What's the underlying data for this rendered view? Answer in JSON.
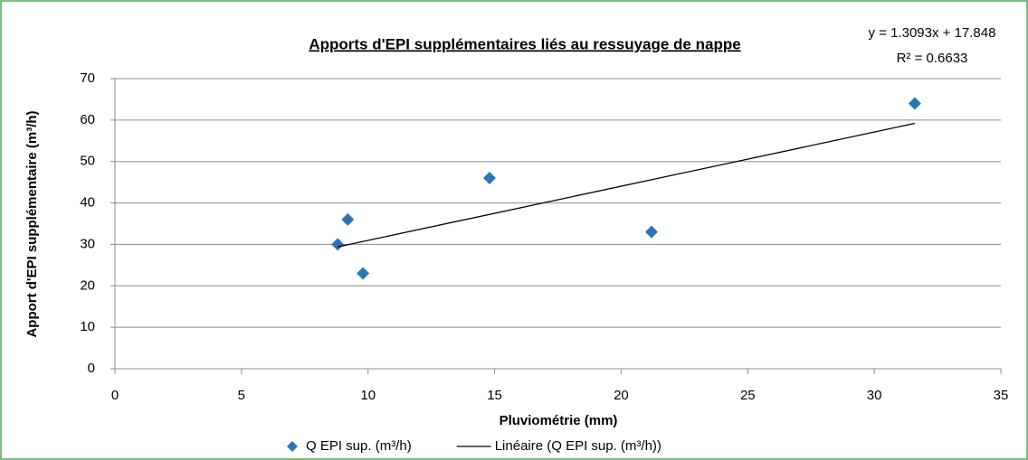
{
  "chart_data": {
    "type": "scatter",
    "title": "Apports d'EPI supplémentaires liés au ressuyage de nappe",
    "x_label": "Pluviométrie (mm)",
    "y_label": "Apport d'EPI supplémentaire (m³/h)",
    "annotations": [
      "y = 1.3093x + 17.848",
      "R² = 0.6633"
    ],
    "series": [
      {
        "name": "Q EPI sup. (m³/h)",
        "type": "scatter",
        "color": "#2e75b6",
        "x": [
          8.8,
          9.2,
          9.8,
          14.8,
          21.2,
          31.6
        ],
        "values": [
          30,
          36,
          23,
          46,
          33,
          64
        ]
      },
      {
        "name": "Linéaire (Q EPI sup. (m³/h))",
        "type": "line",
        "color": "#000000",
        "x": [
          8.8,
          31.6
        ],
        "values": [
          29.4,
          59.2
        ]
      }
    ],
    "xlim": [
      0,
      35
    ],
    "xticks": [
      0,
      5,
      10,
      15,
      20,
      25,
      30,
      35
    ],
    "ylim": [
      0,
      70
    ],
    "yticks": [
      0,
      10,
      20,
      30,
      40,
      50,
      60,
      70
    ],
    "grid": true,
    "legend": "bottom"
  }
}
